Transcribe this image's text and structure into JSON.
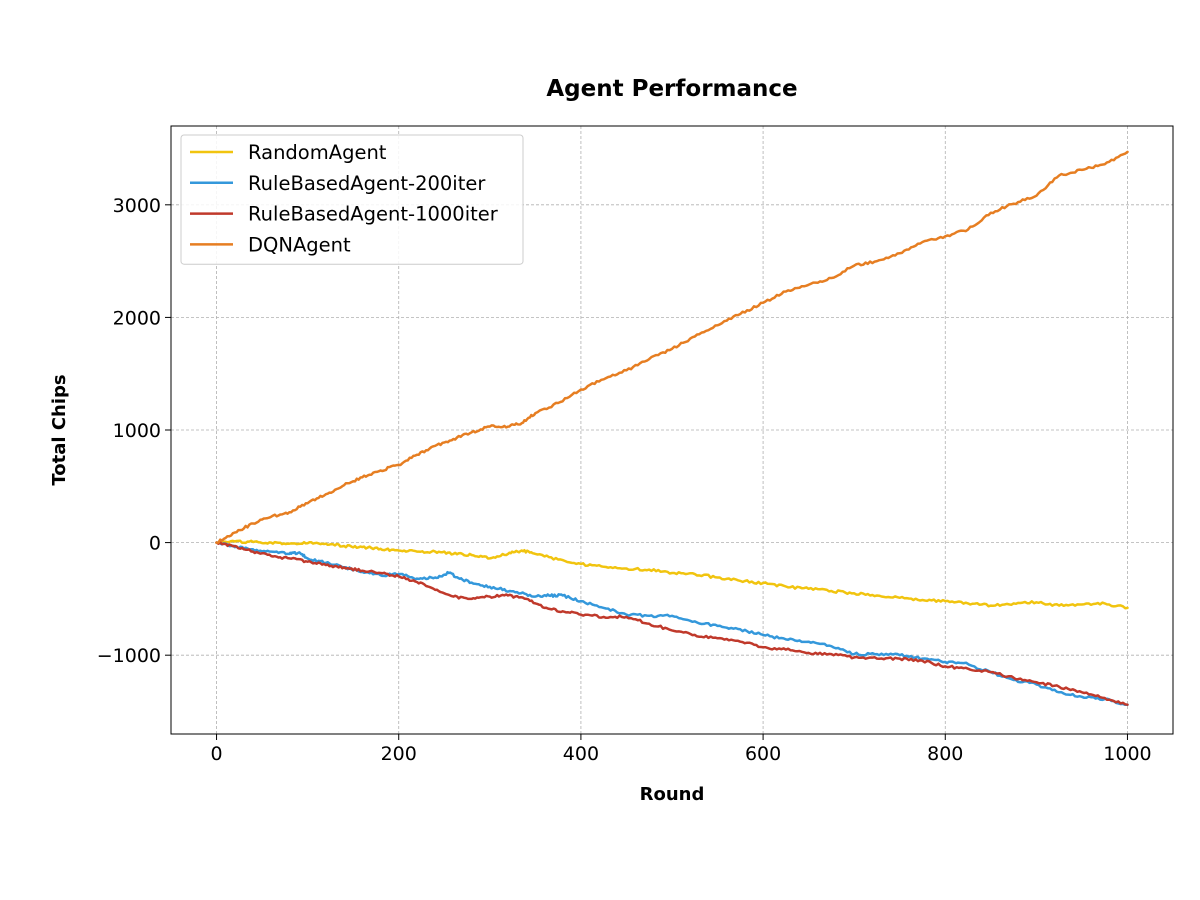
{
  "chart_data": {
    "type": "line",
    "title": "Agent Performance",
    "xlabel": "Round",
    "ylabel": "Total Chips",
    "xlim": [
      -50,
      1050
    ],
    "ylim": [
      -1700,
      3700
    ],
    "x_ticks": [
      0,
      200,
      400,
      600,
      800,
      1000
    ],
    "x_tick_labels": [
      "0",
      "200",
      "400",
      "600",
      "800",
      "1000"
    ],
    "y_ticks": [
      -1000,
      0,
      1000,
      2000,
      3000
    ],
    "y_tick_labels": [
      "−1000",
      "0",
      "1000",
      "2000",
      "3000"
    ],
    "grid": true,
    "legend_position": "top-left",
    "series": [
      {
        "name": "RandomAgent",
        "color": "#f1c40f",
        "x": [
          0,
          20,
          40,
          60,
          80,
          100,
          120,
          140,
          160,
          180,
          200,
          220,
          240,
          260,
          280,
          300,
          320,
          335,
          350,
          375,
          400,
          425,
          450,
          475,
          500,
          525,
          550,
          575,
          600,
          625,
          650,
          675,
          700,
          725,
          750,
          775,
          800,
          825,
          850,
          875,
          900,
          925,
          950,
          975,
          1000
        ],
        "y": [
          0,
          10,
          5,
          0,
          -10,
          -5,
          -10,
          -30,
          -40,
          -55,
          -70,
          -80,
          -80,
          -100,
          -110,
          -140,
          -100,
          -70,
          -100,
          -150,
          -190,
          -215,
          -230,
          -240,
          -270,
          -280,
          -310,
          -340,
          -360,
          -390,
          -410,
          -430,
          -450,
          -470,
          -490,
          -510,
          -520,
          -540,
          -560,
          -540,
          -530,
          -560,
          -550,
          -540,
          -580
        ]
      },
      {
        "name": "RuleBasedAgent-200iter",
        "color": "#3498db",
        "x": [
          0,
          20,
          40,
          60,
          80,
          90,
          100,
          120,
          140,
          160,
          180,
          200,
          220,
          240,
          255,
          270,
          290,
          310,
          330,
          350,
          365,
          380,
          400,
          425,
          450,
          475,
          500,
          525,
          550,
          575,
          600,
          625,
          650,
          675,
          700,
          725,
          750,
          775,
          800,
          820,
          850,
          875,
          900,
          925,
          950,
          975,
          1000
        ],
        "y": [
          0,
          -40,
          -60,
          -80,
          -100,
          -90,
          -140,
          -180,
          -220,
          -260,
          -290,
          -280,
          -320,
          -310,
          -270,
          -330,
          -380,
          -410,
          -440,
          -480,
          -470,
          -470,
          -520,
          -580,
          -640,
          -650,
          -650,
          -700,
          -740,
          -770,
          -820,
          -860,
          -880,
          -920,
          -990,
          -990,
          -1000,
          -1030,
          -1060,
          -1070,
          -1150,
          -1220,
          -1260,
          -1330,
          -1370,
          -1390,
          -1440
        ]
      },
      {
        "name": "RuleBasedAgent-1000iter",
        "color": "#c0392b",
        "x": [
          0,
          20,
          40,
          60,
          80,
          100,
          120,
          140,
          160,
          180,
          200,
          220,
          240,
          260,
          280,
          300,
          320,
          340,
          360,
          380,
          400,
          425,
          450,
          475,
          500,
          525,
          550,
          575,
          600,
          625,
          650,
          675,
          700,
          725,
          750,
          775,
          800,
          825,
          850,
          875,
          900,
          925,
          950,
          975,
          1000
        ],
        "y": [
          0,
          -30,
          -80,
          -120,
          -140,
          -170,
          -200,
          -220,
          -250,
          -270,
          -300,
          -350,
          -420,
          -480,
          -500,
          -480,
          -470,
          -500,
          -580,
          -610,
          -640,
          -660,
          -660,
          -720,
          -780,
          -820,
          -850,
          -880,
          -930,
          -950,
          -980,
          -990,
          -1020,
          -1030,
          -1030,
          -1050,
          -1100,
          -1120,
          -1150,
          -1200,
          -1240,
          -1280,
          -1330,
          -1380,
          -1440
        ]
      },
      {
        "name": "DQNAgent",
        "color": "#e67e22",
        "x": [
          0,
          20,
          40,
          60,
          80,
          100,
          120,
          140,
          160,
          180,
          200,
          220,
          240,
          260,
          280,
          300,
          320,
          335,
          350,
          375,
          400,
          425,
          450,
          475,
          500,
          525,
          550,
          575,
          600,
          625,
          650,
          675,
          700,
          725,
          750,
          775,
          800,
          825,
          850,
          875,
          900,
          925,
          950,
          975,
          1000
        ],
        "y": [
          0,
          90,
          170,
          230,
          270,
          350,
          430,
          510,
          580,
          640,
          690,
          780,
          860,
          920,
          980,
          1030,
          1030,
          1060,
          1150,
          1240,
          1360,
          1450,
          1530,
          1630,
          1720,
          1830,
          1930,
          2030,
          2130,
          2230,
          2290,
          2350,
          2460,
          2500,
          2570,
          2670,
          2720,
          2780,
          2930,
          3010,
          3080,
          3260,
          3310,
          3360,
          3470
        ]
      }
    ]
  }
}
